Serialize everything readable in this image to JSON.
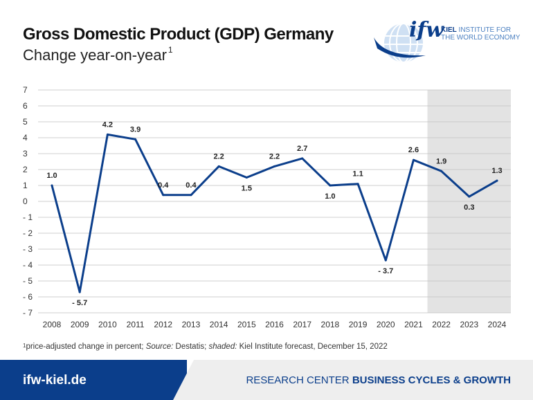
{
  "header": {
    "title": "Gross Domestic Product (GDP) Germany",
    "subtitle": "Change year-on-year",
    "subtitle_sup": "1"
  },
  "logo": {
    "mark": "ifw",
    "line1_bold": "KIEL",
    "line1_rest": " INSTITUTE FOR",
    "line2": "THE WORLD ECONOMY"
  },
  "chart_data": {
    "type": "line",
    "x": [
      "2008",
      "2009",
      "2010",
      "2011",
      "2012",
      "2013",
      "2014",
      "2015",
      "2016",
      "2017",
      "2018",
      "2019",
      "2020",
      "2021",
      "2022",
      "2023",
      "2024"
    ],
    "series": [
      {
        "values": [
          1.0,
          -5.7,
          4.2,
          3.9,
          0.4,
          0.4,
          2.2,
          1.5,
          2.2,
          2.7,
          1.0,
          1.1,
          -3.7,
          2.6,
          1.9,
          0.3,
          1.3
        ]
      }
    ],
    "data_labels": [
      "1.0",
      "- 5.7",
      "4.2",
      "3.9",
      "0.4",
      "0.4",
      "2.2",
      "1.5",
      "2.2",
      "2.7",
      "1.0",
      "1.1",
      "- 3.7",
      "2.6",
      "1.9",
      "0.3",
      "1.3"
    ],
    "y_ticks": [
      7,
      6,
      5,
      4,
      3,
      2,
      1,
      0,
      -1,
      -2,
      -3,
      -4,
      -5,
      -6,
      -7
    ],
    "y_tick_labels": [
      "7",
      "6",
      "5",
      "4",
      "3",
      "2",
      "1",
      "0",
      "- 1",
      "- 2",
      "- 3",
      "- 4",
      "- 5",
      "- 6",
      "- 7"
    ],
    "ylim": [
      -7,
      7
    ],
    "shaded_from": "2022",
    "grid": true,
    "colors": {
      "line": "#0b3e8b",
      "grid": "#bfbfbf",
      "shade": "#e3e3e3"
    }
  },
  "footnote": {
    "sup": "1",
    "text_a": "price-adjusted change in percent; ",
    "source_label": "Source:",
    "text_b": " Destatis; ",
    "shaded_label": "shaded:",
    "text_c": " Kiel Institute forecast, December 15, 2022"
  },
  "footer": {
    "left": "ifw-kiel.de",
    "right_prefix": "RESEARCH CENTER ",
    "right_bold": "BUSINESS CYCLES & GROWTH"
  }
}
